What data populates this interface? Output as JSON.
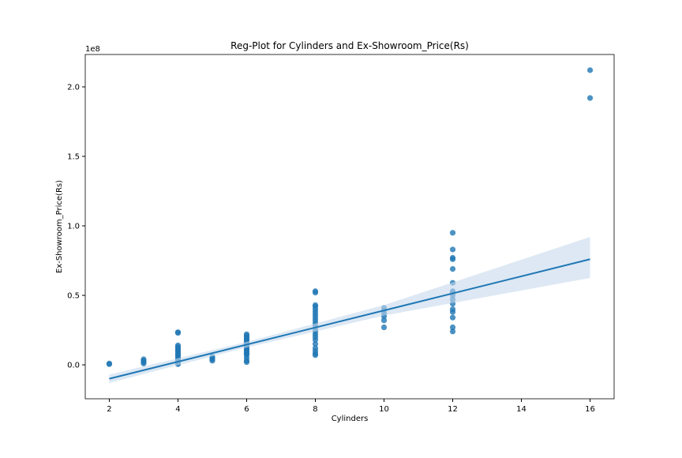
{
  "chart_data": {
    "type": "regplot",
    "title": "Reg-Plot for Cylinders and Ex-Showroom_Price(Rs)",
    "xlabel": "Cylinders",
    "ylabel": "Ex-Showroom_Price(Rs)",
    "y_offset_label": "1e8",
    "color": "#1f77b4",
    "band_color": "#c6d9ec",
    "x": [
      2,
      2,
      3,
      3,
      3,
      3,
      4,
      4,
      4,
      4,
      4,
      4,
      4,
      4,
      4,
      4,
      4,
      4,
      4,
      4,
      4,
      4,
      4,
      5,
      5,
      5,
      5,
      6,
      6,
      6,
      6,
      6,
      6,
      6,
      6,
      6,
      6,
      6,
      6,
      6,
      6,
      6,
      6,
      6,
      6,
      6,
      8,
      8,
      8,
      8,
      8,
      8,
      8,
      8,
      8,
      8,
      8,
      8,
      8,
      8,
      8,
      8,
      8,
      8,
      8,
      8,
      8,
      10,
      10,
      10,
      10,
      10,
      10,
      12,
      12,
      12,
      12,
      12,
      12,
      12,
      12,
      12,
      12,
      12,
      12,
      12,
      12,
      12,
      12,
      16,
      16
    ],
    "y": [
      0.005,
      0.01,
      0.01,
      0.02,
      0.03,
      0.04,
      0.005,
      0.01,
      0.02,
      0.03,
      0.04,
      0.05,
      0.06,
      0.07,
      0.08,
      0.09,
      0.1,
      0.11,
      0.12,
      0.13,
      0.14,
      0.23,
      0.235,
      0.03,
      0.04,
      0.05,
      0.06,
      0.02,
      0.03,
      0.05,
      0.07,
      0.08,
      0.09,
      0.1,
      0.11,
      0.12,
      0.13,
      0.14,
      0.15,
      0.16,
      0.17,
      0.18,
      0.19,
      0.2,
      0.21,
      0.22,
      0.07,
      0.08,
      0.1,
      0.12,
      0.15,
      0.18,
      0.2,
      0.22,
      0.24,
      0.26,
      0.28,
      0.3,
      0.32,
      0.34,
      0.36,
      0.38,
      0.4,
      0.42,
      0.43,
      0.52,
      0.53,
      0.27,
      0.32,
      0.35,
      0.37,
      0.39,
      0.41,
      0.24,
      0.27,
      0.34,
      0.38,
      0.4,
      0.44,
      0.47,
      0.5,
      0.52,
      0.53,
      0.59,
      0.69,
      0.76,
      0.77,
      0.83,
      0.95,
      1.92,
      2.12
    ],
    "fit": {
      "x": [
        2,
        16
      ],
      "y": [
        -0.1,
        0.76
      ]
    },
    "band": {
      "x": [
        2,
        6,
        10,
        16
      ],
      "lower": [
        -0.13,
        0.125,
        0.355,
        0.625
      ],
      "upper": [
        -0.07,
        0.165,
        0.43,
        0.92
      ]
    },
    "xlim": [
      1.3,
      16.7
    ],
    "ylim": [
      -0.244,
      2.233
    ],
    "xticks": [
      2,
      4,
      6,
      8,
      10,
      12,
      14,
      16
    ],
    "yticks": [
      {
        "value": 0,
        "label": "0.0"
      },
      0.5,
      {
        "value": 1,
        "label": "1.0"
      },
      1.5,
      {
        "value": 2,
        "label": "2.0"
      }
    ]
  }
}
